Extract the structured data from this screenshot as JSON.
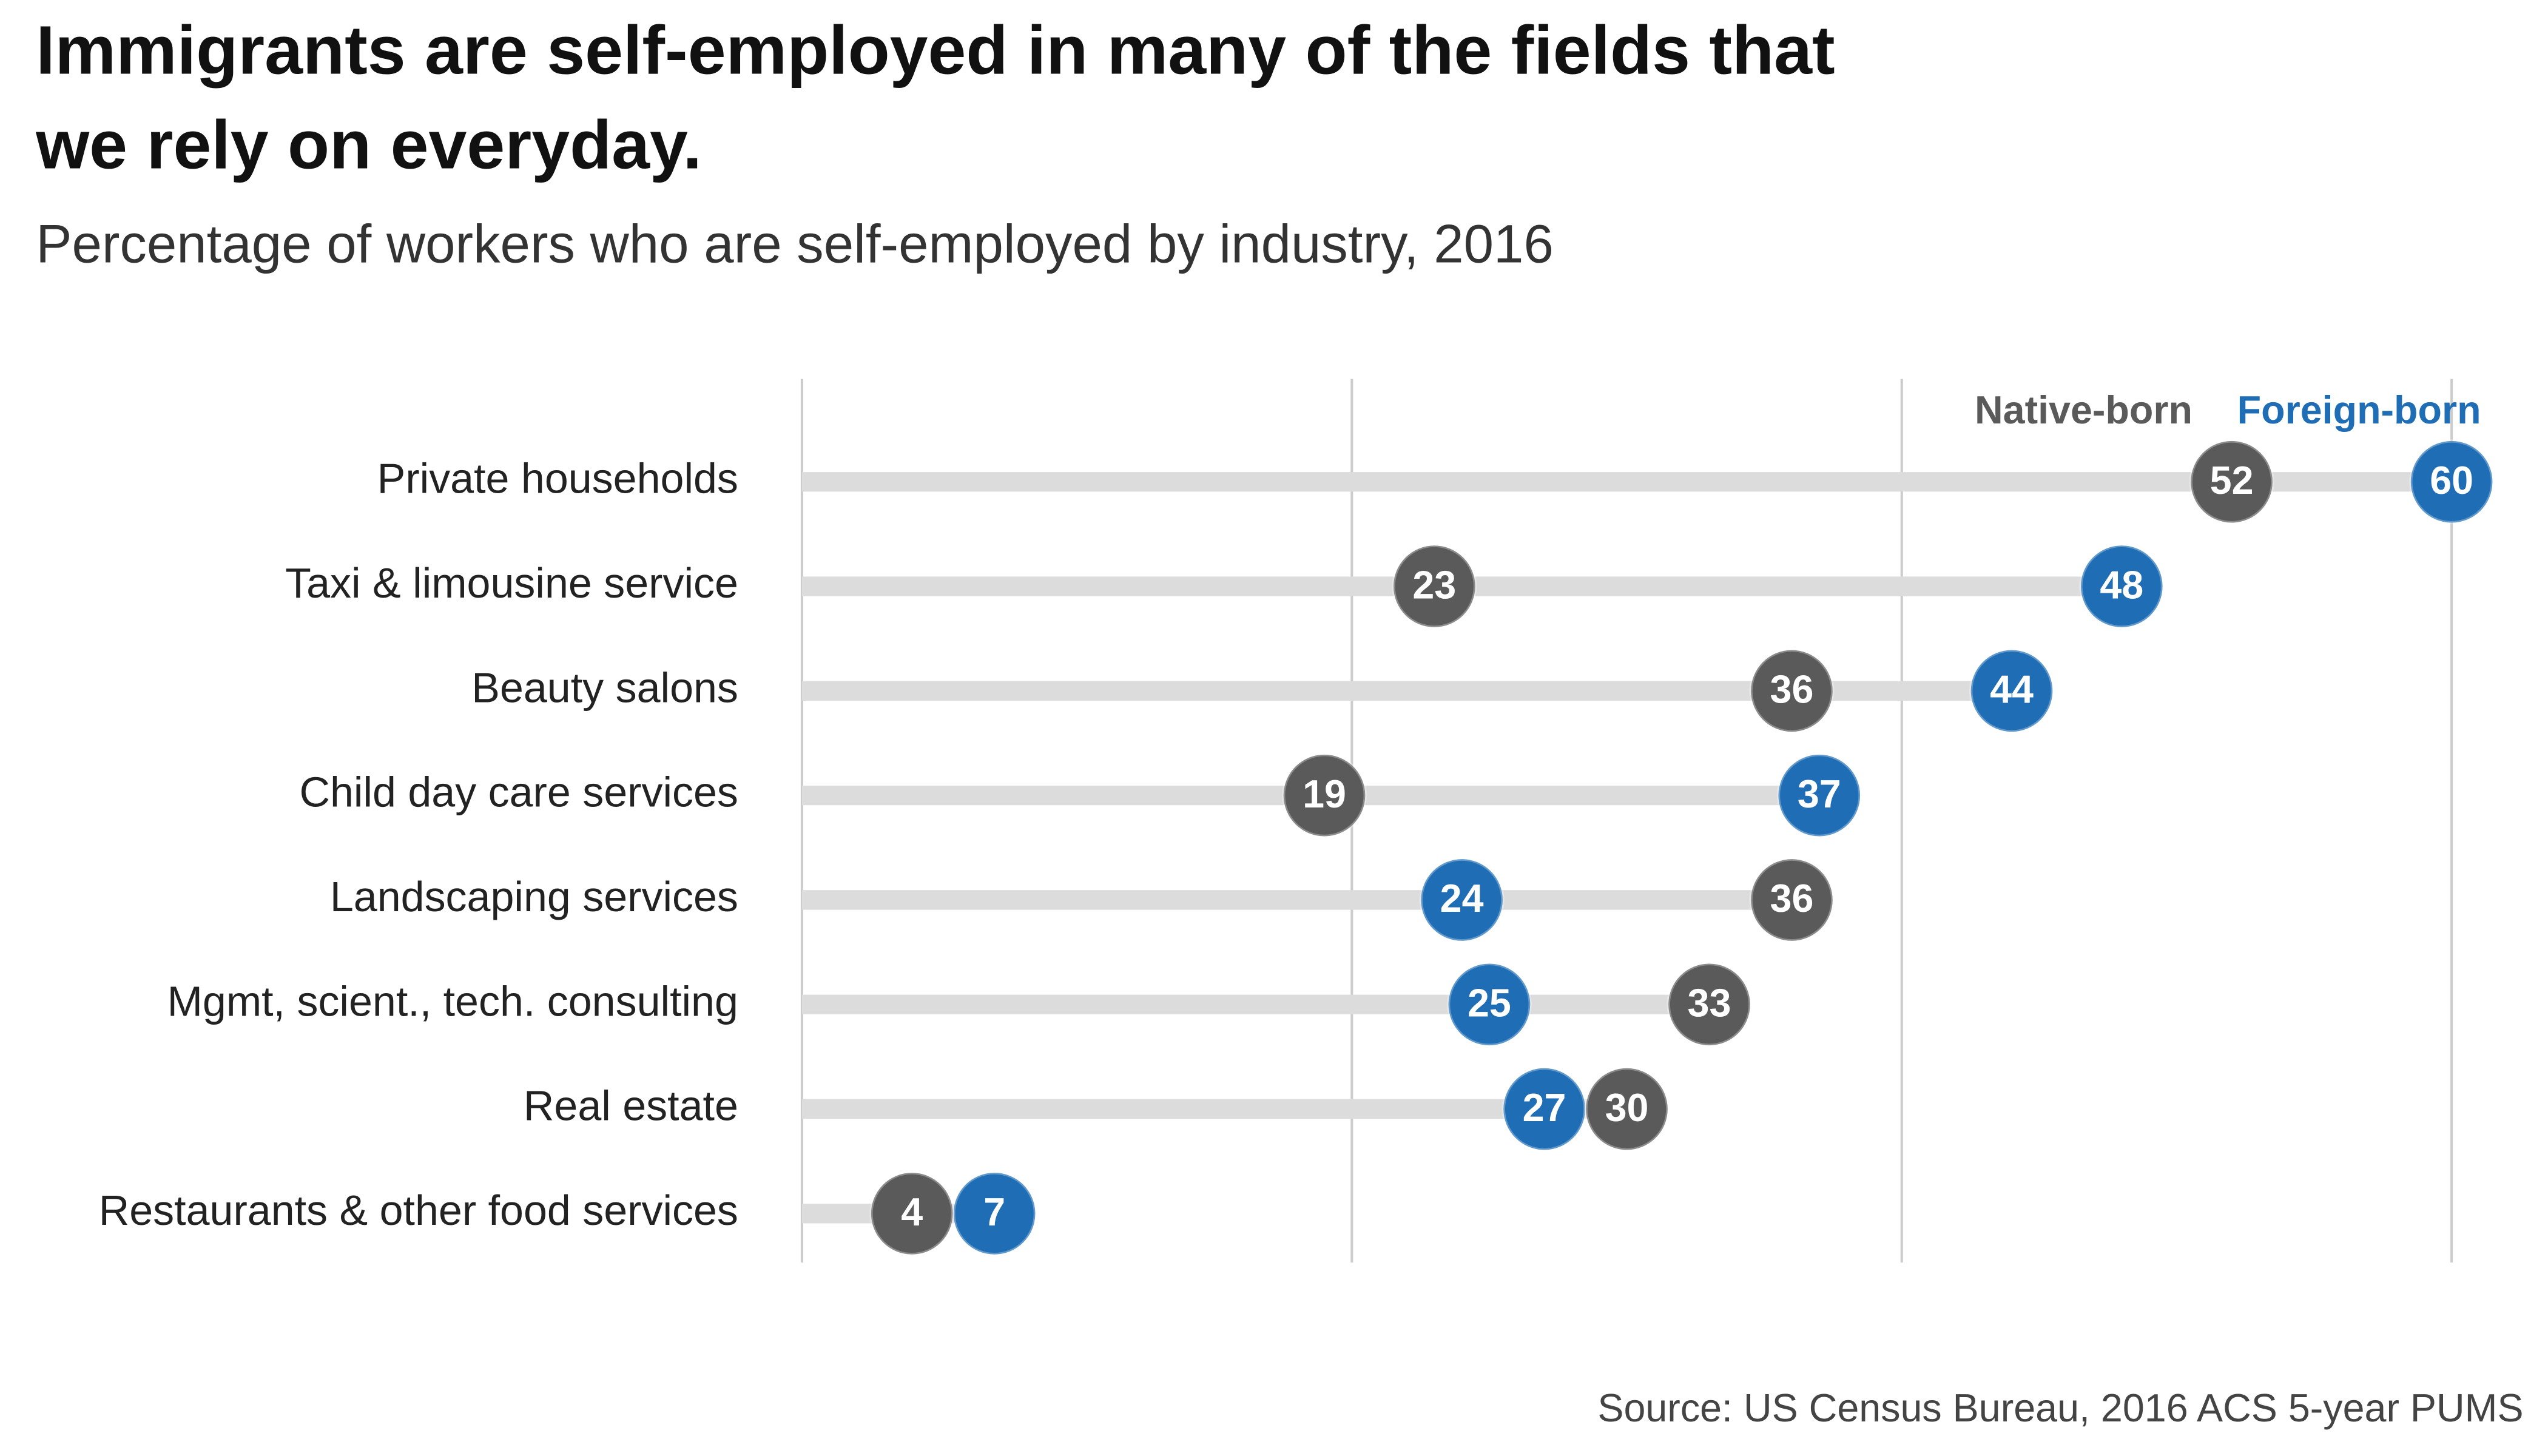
{
  "chart_data": {
    "type": "dumbbell",
    "title": [
      "Immigrants are self-employed in many of the fields that",
      "we rely on everyday."
    ],
    "subtitle": "Percentage of workers who are self-employed by industry, 2016",
    "source": "Source: US Census Bureau, 2016 ACS 5-year PUMS",
    "categories": [
      "Private households",
      "Taxi & limousine service",
      "Beauty salons",
      "Child day care services",
      "Landscaping services",
      "Mgmt, scient., tech. consulting",
      "Real estate",
      "Restaurants & other food services"
    ],
    "series": [
      {
        "name": "Foreign-born",
        "color": "#1f6db5",
        "values": [
          60,
          48,
          44,
          37,
          24,
          25,
          27,
          7
        ]
      },
      {
        "name": "Native-born",
        "color": "#5a5a5a",
        "values": [
          52,
          23,
          36,
          19,
          36,
          33,
          30,
          4
        ]
      }
    ],
    "xlim": [
      0,
      60
    ],
    "xticks": [
      0,
      20,
      40,
      60
    ],
    "grid": true
  }
}
